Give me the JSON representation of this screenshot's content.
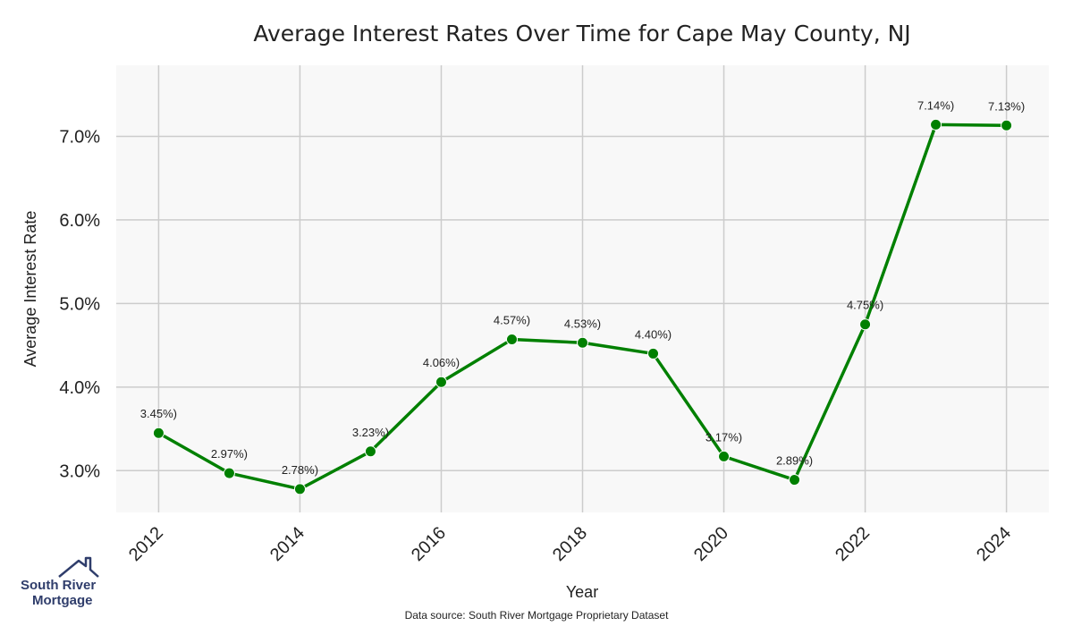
{
  "chart_data": {
    "type": "line",
    "title": "Average Interest Rates Over Time for Cape May County, NJ",
    "xlabel": "Year",
    "ylabel": "Average Interest Rate",
    "x": [
      2012,
      2013,
      2014,
      2015,
      2016,
      2017,
      2018,
      2019,
      2020,
      2021,
      2022,
      2023,
      2024
    ],
    "values": [
      3.45,
      2.97,
      2.78,
      3.23,
      4.06,
      4.57,
      4.53,
      4.4,
      3.17,
      2.89,
      4.75,
      7.14,
      7.13
    ],
    "data_labels": [
      "3.45%)",
      "2.97%)",
      "2.78%)",
      "3.23%)",
      "4.06%)",
      "4.57%)",
      "4.53%)",
      "4.40%)",
      "3.17%)",
      "2.89%)",
      "4.75%)",
      "7.14%)",
      "7.13%)"
    ],
    "x_ticks": [
      2012,
      2014,
      2016,
      2018,
      2020,
      2022,
      2024
    ],
    "x_tick_labels": [
      "2012",
      "2014",
      "2016",
      "2018",
      "2020",
      "2022",
      "2024"
    ],
    "y_ticks": [
      3.0,
      4.0,
      5.0,
      6.0,
      7.0
    ],
    "y_tick_labels": [
      "3.0%",
      "4.0%",
      "5.0%",
      "6.0%",
      "7.0%"
    ],
    "xlim": [
      2011.4,
      2024.6
    ],
    "ylim": [
      2.5,
      7.85
    ],
    "grid": true,
    "line_color": "#008000",
    "plot_background": "#f8f8f8",
    "grid_color": "#cccccc"
  },
  "footer": {
    "source": "Data source: South River Mortgage Proprietary Dataset"
  },
  "logo": {
    "line1": "South River",
    "line2": "Mortgage",
    "color": "#2f3d6b"
  }
}
